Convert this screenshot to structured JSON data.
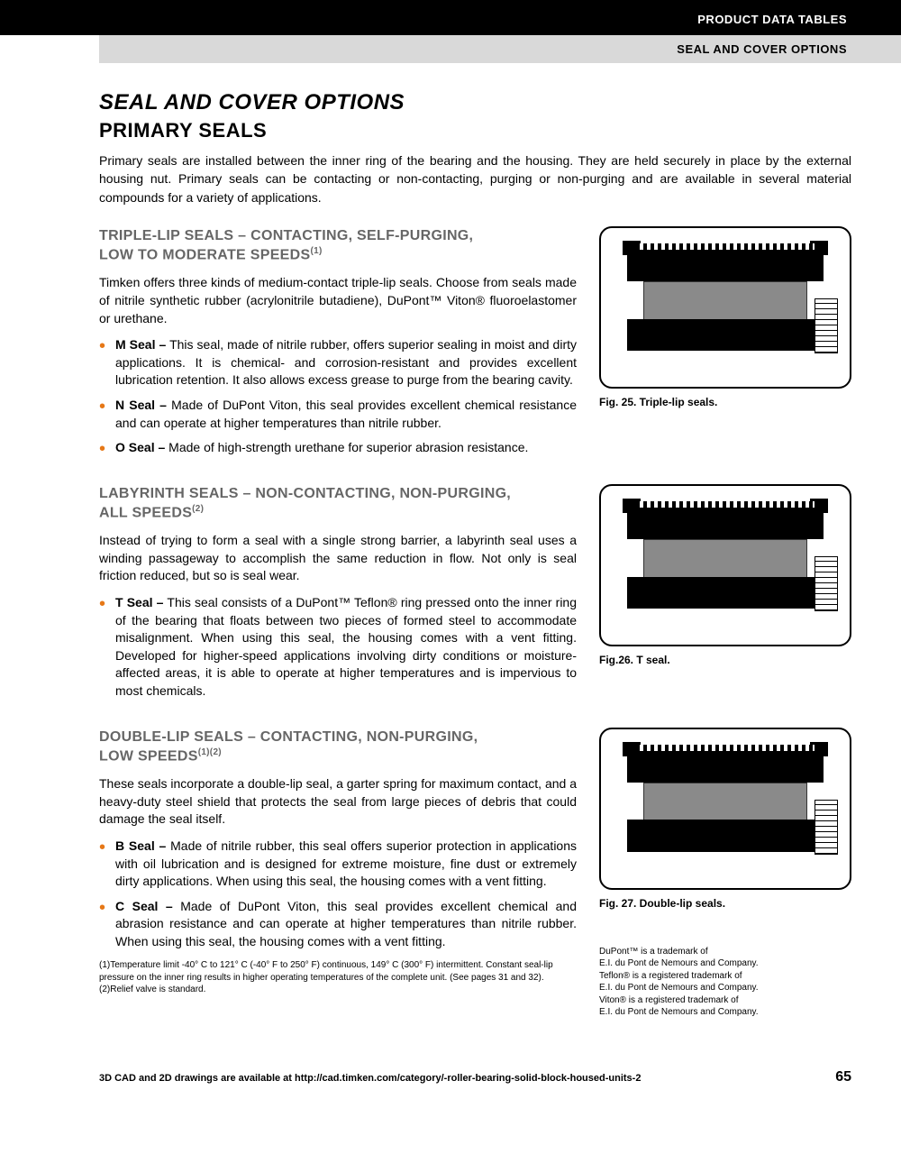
{
  "header": {
    "black": "PRODUCT DATA TABLES",
    "gray": "SEAL AND COVER OPTIONS"
  },
  "title": "SEAL AND COVER OPTIONS",
  "subtitle": "PRIMARY SEALS",
  "intro": "Primary seals are installed between the inner ring of the bearing and the housing. They are held securely in place by the external housing nut. Primary seals can be contacting or non-contacting, purging or non-purging and are available in several material compounds for a variety of applications.",
  "sections": {
    "triple": {
      "heading_line1": "TRIPLE-LIP SEALS – CONTACTING, SELF-PURGING,",
      "heading_line2": "LOW TO MODERATE SPEEDS",
      "heading_sup": "(1)",
      "body": "Timken offers three kinds of medium-contact triple-lip seals. Choose from seals made of nitrile synthetic rubber (acrylonitrile butadiene), DuPont™ Viton® fluoroelastomer or urethane.",
      "items": [
        {
          "label": "M Seal –",
          "text": " This seal, made of nitrile rubber, offers superior sealing in moist and dirty applications. It is chemical- and corrosion-resistant and provides excellent lubrication retention. It also allows excess grease to purge from the bearing cavity."
        },
        {
          "label": "N Seal –",
          "text": " Made of DuPont Viton, this seal provides excellent chemical resistance and can operate at higher temperatures than nitrile rubber."
        },
        {
          "label": "O Seal –",
          "text": " Made of high-strength urethane for superior abrasion resistance."
        }
      ],
      "fig_caption": "Fig. 25. Triple-lip seals."
    },
    "labyrinth": {
      "heading_line1": "LABYRINTH SEALS – NON-CONTACTING, NON-PURGING,",
      "heading_line2": "ALL SPEEDS",
      "heading_sup": "(2)",
      "body": "Instead of trying to form a seal with a single strong barrier, a labyrinth seal uses a winding passageway to accomplish the same reduction in flow. Not only is seal friction reduced, but so is seal wear.",
      "items": [
        {
          "label": "T Seal –",
          "text": " This seal consists of a DuPont™ Teflon® ring pressed onto the inner ring of the bearing that floats between two pieces of formed steel to accommodate misalignment. When using this seal, the housing comes with a vent fitting. Developed for higher-speed applications involving dirty conditions or moisture-affected areas, it is able to operate at higher temperatures and is impervious to most chemicals."
        }
      ],
      "fig_caption": "Fig.26. T seal."
    },
    "double": {
      "heading_line1": "DOUBLE-LIP SEALS – CONTACTING, NON-PURGING,",
      "heading_line2": "LOW SPEEDS",
      "heading_sup": "(1)(2)",
      "body": "These seals incorporate a double-lip seal, a garter spring for maximum contact, and a heavy-duty steel shield that protects the seal from large pieces of debris that could damage the seal itself.",
      "items": [
        {
          "label": "B Seal –",
          "text": " Made of nitrile rubber, this seal offers superior protection in applications with oil lubrication and is designed for extreme moisture, fine dust or extremely dirty applications. When using this seal, the housing comes with a vent fitting."
        },
        {
          "label": "C Seal –",
          "text": " Made of DuPont Viton, this seal provides excellent chemical and abrasion resistance and can operate at higher temperatures than nitrile rubber. When using this seal, the housing comes with a vent fitting."
        }
      ],
      "fig_caption": "Fig. 27. Double-lip seals."
    }
  },
  "trademark": "DuPont™ is a trademark of\nE.I. du Pont de Nemours and Company.\nTeflon® is a registered trademark of\nE.I. du Pont de Nemours and Company.\nViton® is a registered trademark of\nE.I. du Pont de Nemours and Company.",
  "footnotes": {
    "f1": "(1)Temperature limit -40° C to 121° C (-40° F to 250° F) continuous, 149° C (300° F) intermittent. Constant seal-lip pressure on the inner ring results in higher operating temperatures of the complete unit. (See pages 31 and 32).",
    "f2": "(2)Relief valve is standard."
  },
  "footer": {
    "text": "3D CAD and 2D drawings are available at http://cad.timken.com/category/-roller-bearing-solid-block-housed-units-2",
    "page": "65"
  },
  "colors": {
    "bullet": "#e67817",
    "heading_gray": "#666666",
    "header_gray_bg": "#d9d9d9"
  }
}
